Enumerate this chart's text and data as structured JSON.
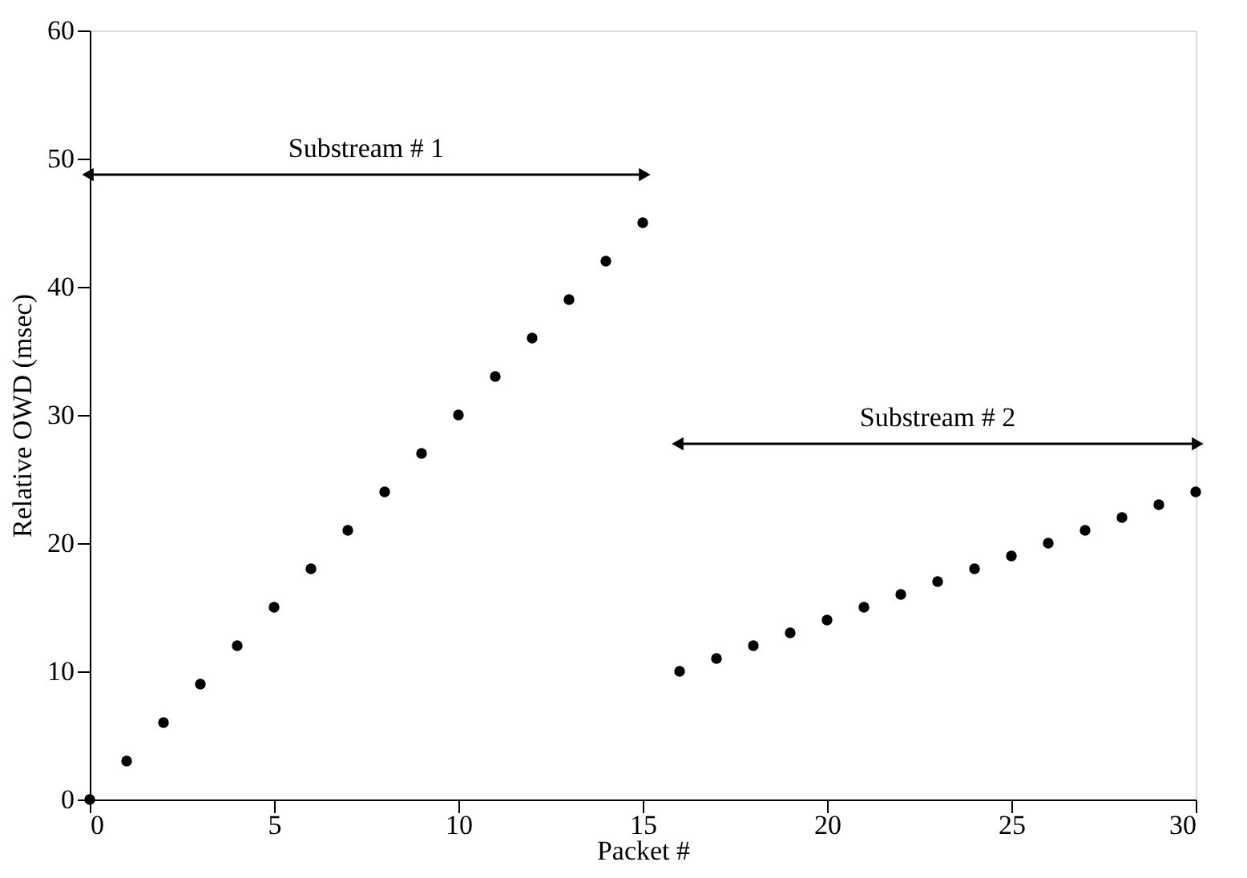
{
  "chart_data": {
    "type": "scatter",
    "xlabel": "Packet #",
    "ylabel": "Relative OWD (msec)",
    "xlim": [
      0,
      30
    ],
    "ylim": [
      0,
      60
    ],
    "xticks": [
      0,
      5,
      10,
      15,
      20,
      25,
      30
    ],
    "yticks": [
      0,
      10,
      20,
      30,
      40,
      50,
      60
    ],
    "grid": false,
    "legend": false,
    "marker": "circle",
    "series": [
      {
        "color": "#000000",
        "x": [
          0,
          1,
          2,
          3,
          4,
          5,
          6,
          7,
          8,
          9,
          10,
          11,
          12,
          13,
          14,
          15
        ],
        "values": [
          0,
          3,
          6,
          9,
          12,
          15,
          18,
          21,
          24,
          27,
          30,
          33,
          36,
          39,
          42,
          45
        ]
      },
      {
        "color": "#000000",
        "x": [
          16,
          17,
          18,
          19,
          20,
          21,
          22,
          23,
          24,
          25,
          26,
          27,
          28,
          29,
          30
        ],
        "values": [
          10,
          11,
          12,
          13,
          14,
          15,
          16,
          17,
          18,
          19,
          20,
          21,
          22,
          23,
          24
        ]
      }
    ],
    "annotations": [
      "Substream # 1",
      "Substream # 2"
    ]
  }
}
